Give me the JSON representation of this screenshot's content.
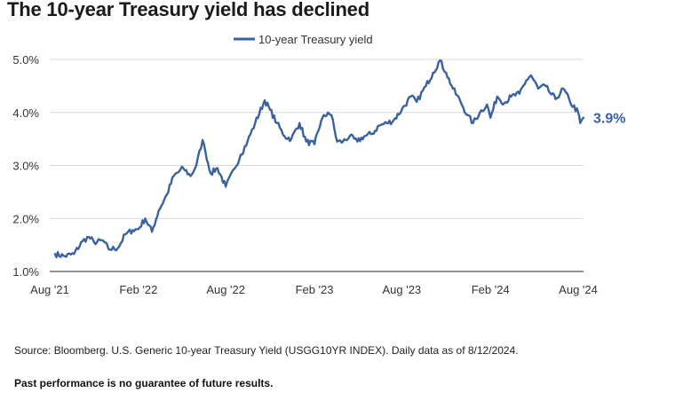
{
  "title": "The 10-year Treasury yield has declined",
  "source_note": "Source: Bloomberg. U.S. Generic 10-year Treasury Yield (USGG10YR INDEX). Daily data as of 8/12/2024.",
  "disclaimer": "Past performance is no guarantee of future results.",
  "chart_data": {
    "type": "line",
    "series": [
      {
        "name": "10-year Treasury yield",
        "color": "#3a62a0",
        "x": [
          "2021-08-12",
          "2021-09-01",
          "2021-09-20",
          "2021-10-08",
          "2021-10-21",
          "2021-11-01",
          "2021-11-20",
          "2021-12-01",
          "2021-12-20",
          "2022-01-05",
          "2022-01-20",
          "2022-02-01",
          "2022-02-15",
          "2022-03-01",
          "2022-03-15",
          "2022-04-01",
          "2022-04-15",
          "2022-05-05",
          "2022-05-20",
          "2022-06-01",
          "2022-06-14",
          "2022-06-20",
          "2022-07-01",
          "2022-07-15",
          "2022-08-01",
          "2022-08-20",
          "2022-09-01",
          "2022-09-15",
          "2022-10-01",
          "2022-10-21",
          "2022-11-01",
          "2022-11-15",
          "2022-12-01",
          "2022-12-15",
          "2023-01-01",
          "2023-01-15",
          "2023-02-01",
          "2023-02-15",
          "2023-03-01",
          "2023-03-08",
          "2023-03-20",
          "2023-04-01",
          "2023-04-15",
          "2023-05-01",
          "2023-05-15",
          "2023-06-01",
          "2023-06-15",
          "2023-07-01",
          "2023-07-15",
          "2023-08-01",
          "2023-08-20",
          "2023-09-01",
          "2023-09-20",
          "2023-10-05",
          "2023-10-19",
          "2023-11-01",
          "2023-11-15",
          "2023-12-01",
          "2023-12-15",
          "2023-12-27",
          "2024-01-10",
          "2024-01-25",
          "2024-02-01",
          "2024-02-15",
          "2024-03-01",
          "2024-03-15",
          "2024-04-01",
          "2024-04-15",
          "2024-04-25",
          "2024-05-10",
          "2024-05-25",
          "2024-06-01",
          "2024-06-15",
          "2024-07-01",
          "2024-07-15",
          "2024-08-01",
          "2024-08-05",
          "2024-08-12"
        ],
        "values": [
          1.33,
          1.29,
          1.33,
          1.57,
          1.65,
          1.55,
          1.58,
          1.42,
          1.44,
          1.7,
          1.78,
          1.8,
          2.0,
          1.75,
          2.15,
          2.45,
          2.8,
          2.95,
          2.8,
          3.0,
          3.48,
          3.25,
          2.85,
          2.95,
          2.6,
          2.95,
          3.2,
          3.45,
          3.8,
          4.23,
          4.05,
          3.8,
          3.55,
          3.5,
          3.8,
          3.45,
          3.4,
          3.85,
          4.0,
          3.95,
          3.45,
          3.45,
          3.55,
          3.45,
          3.55,
          3.6,
          3.75,
          3.8,
          3.85,
          4.05,
          4.3,
          4.2,
          4.5,
          4.75,
          4.98,
          4.75,
          4.45,
          4.2,
          3.95,
          3.8,
          4.0,
          4.15,
          3.9,
          4.3,
          4.18,
          4.3,
          4.35,
          4.6,
          4.7,
          4.45,
          4.5,
          4.4,
          4.25,
          4.45,
          4.2,
          4.0,
          3.8,
          3.9
        ]
      }
    ],
    "end_label": "3.9%",
    "x_tick_labels": [
      "Aug '21",
      "Feb '22",
      "Aug '22",
      "Feb '23",
      "Aug '23",
      "Feb '24",
      "Aug '24"
    ],
    "x_ticks": [
      "2021-08-01",
      "2022-02-01",
      "2022-08-01",
      "2023-02-01",
      "2023-08-01",
      "2024-02-01",
      "2024-08-01"
    ],
    "y_tick_labels": [
      "1.0%",
      "2.0%",
      "3.0%",
      "4.0%",
      "5.0%"
    ],
    "y_ticks": [
      1,
      2,
      3,
      4,
      5
    ],
    "ylim": [
      1.0,
      5.0
    ],
    "xlim": [
      "2021-08-01",
      "2024-08-12"
    ],
    "grid": "horizontal",
    "legend_position": "top-center",
    "xlabel": "",
    "ylabel": ""
  }
}
